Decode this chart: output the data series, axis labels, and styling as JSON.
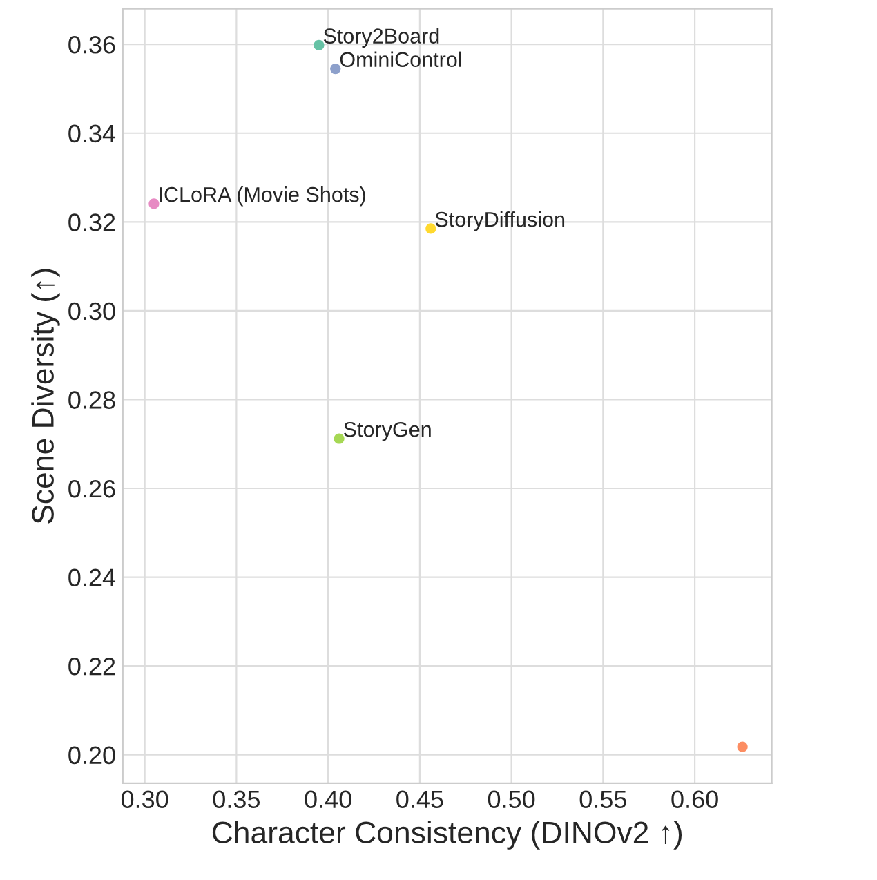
{
  "chart_data": {
    "type": "scatter",
    "xlabel": "Character Consistency (DINOv2 ↑)",
    "ylabel": "Scene Diversity (↑)",
    "series": [
      {
        "name": "Story2Board",
        "color": "#66c2a5",
        "x": [
          0.395
        ],
        "values": [
          0.3598
        ]
      },
      {
        "name": "OminiControl",
        "color": "#8da0cb",
        "x": [
          0.404
        ],
        "values": [
          0.3545
        ]
      },
      {
        "name": "ICLoRA (Movie Shots)",
        "color": "#e78ac3",
        "x": [
          0.305
        ],
        "values": [
          0.3241
        ]
      },
      {
        "name": "StoryDiffusion",
        "color": "#ffd92f",
        "x": [
          0.456
        ],
        "values": [
          0.3185
        ]
      },
      {
        "name": "StoryGen",
        "color": "#a6d854",
        "x": [
          0.406
        ],
        "values": [
          0.2712
        ]
      },
      {
        "color": "#fc8d62",
        "x": [
          0.626
        ],
        "values": [
          0.2018
        ]
      }
    ],
    "xlim": [
      0.288,
      0.642
    ],
    "ylim": [
      0.1936,
      0.368
    ],
    "xticks": [
      {
        "value": 0.3,
        "label": "0.30"
      },
      {
        "value": 0.35,
        "label": "0.35"
      },
      {
        "value": 0.4,
        "label": "0.40"
      },
      {
        "value": 0.45,
        "label": "0.45"
      },
      {
        "value": 0.5,
        "label": "0.50"
      },
      {
        "value": 0.55,
        "label": "0.55"
      },
      {
        "value": 0.6,
        "label": "0.60"
      }
    ],
    "yticks": [
      {
        "value": 0.2,
        "label": "0.20"
      },
      {
        "value": 0.22,
        "label": "0.22"
      },
      {
        "value": 0.24,
        "label": "0.24"
      },
      {
        "value": 0.26,
        "label": "0.26"
      },
      {
        "value": 0.28,
        "label": "0.28"
      },
      {
        "value": 0.3,
        "label": "0.30"
      },
      {
        "value": 0.32,
        "label": "0.32"
      },
      {
        "value": 0.34,
        "label": "0.34"
      },
      {
        "value": 0.36,
        "label": "0.36"
      }
    ],
    "grid": true,
    "marker": "circle",
    "legend": false
  }
}
